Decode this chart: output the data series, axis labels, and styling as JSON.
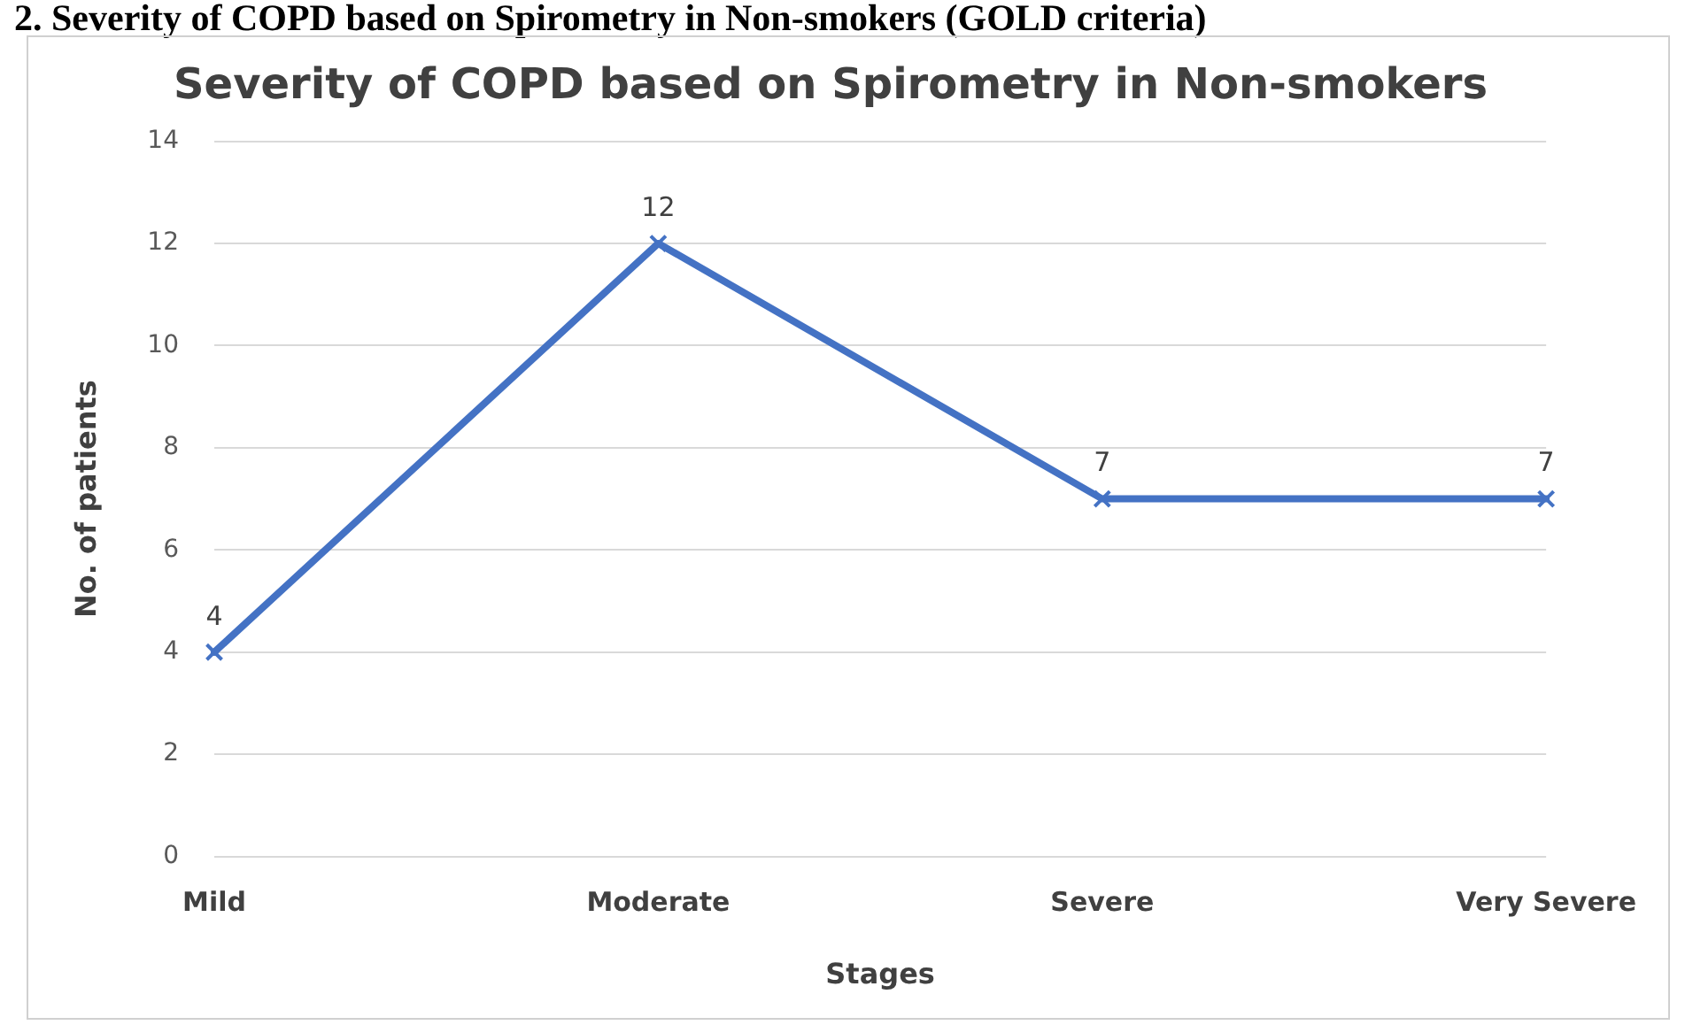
{
  "chart_data": {
    "type": "line",
    "title": "Severity of COPD based on Spirometry in Non-smokers",
    "xlabel": "Stages",
    "ylabel": "No. of patients",
    "annotations": [
      "2. Severity of COPD based on Spirometry in Non-smokers (GOLD criteria)"
    ],
    "categories": [
      "Mild",
      "Moderate",
      "Severe",
      "Very Severe"
    ],
    "series": [
      {
        "color": "#4472c4",
        "values": [
          4,
          12,
          7,
          7
        ]
      }
    ],
    "ylim": [
      0,
      14
    ],
    "yticks": [
      0,
      2,
      4,
      6,
      8,
      10,
      12,
      14
    ],
    "grid": "y",
    "legend": false,
    "marker": "cross",
    "line_style": "solid",
    "data_labels": true
  }
}
